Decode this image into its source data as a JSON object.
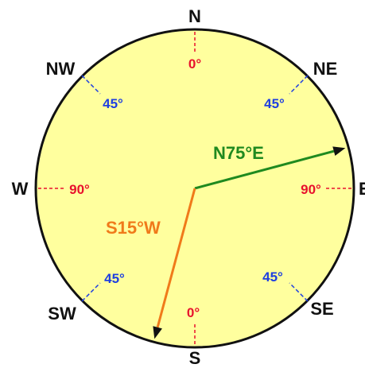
{
  "directions": {
    "n": "N",
    "ne": "NE",
    "e": "E",
    "se": "SE",
    "s": "S",
    "sw": "SW",
    "w": "W",
    "nw": "NW"
  },
  "degree_labels": {
    "north": "0°",
    "south": "0°",
    "east": "90°",
    "west": "90°",
    "ne": "45°",
    "nw": "45°",
    "se": "45°",
    "sw": "45°"
  },
  "bearings": [
    {
      "label": "N75°E",
      "angle_deg": 75,
      "quadrant": "NE",
      "color": "#1f8a1f"
    },
    {
      "label": "S15°W",
      "angle_deg": 15,
      "quadrant": "SW",
      "color": "#f07a1a"
    }
  ],
  "colors": {
    "face": "#ffff9e",
    "rim": "#111111",
    "cardinal_tick": "#e8112d",
    "diagonal_tick": "#1e3fe0",
    "cardinal_degree_text": "#e8112d",
    "diagonal_degree_text": "#1e3fe0"
  }
}
